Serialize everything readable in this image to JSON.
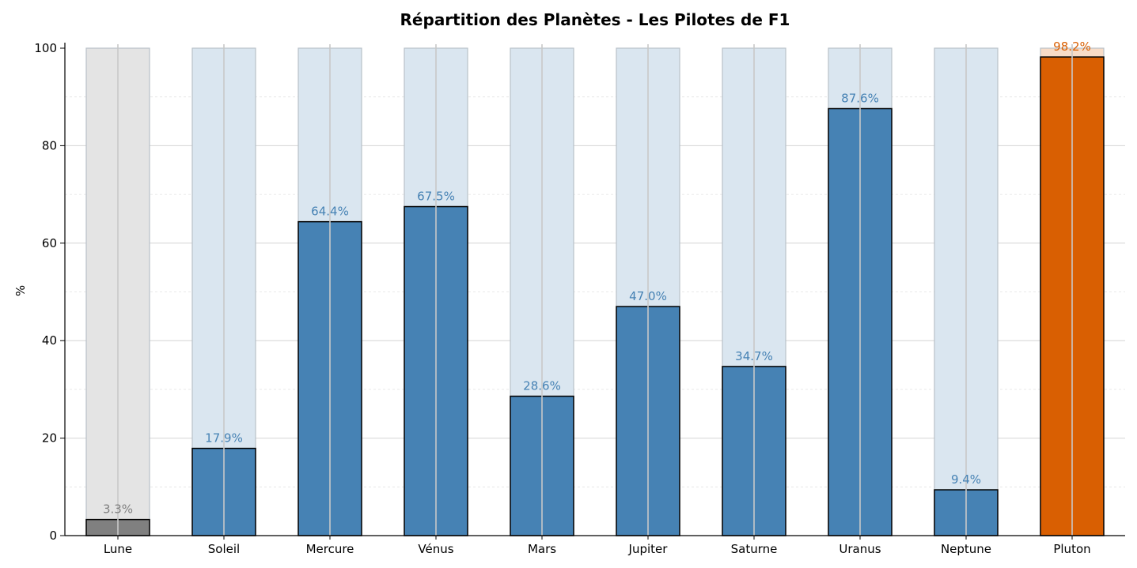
{
  "chart_data": {
    "type": "bar",
    "title": "Répartition des Planètes - Les Pilotes de F1",
    "xlabel": "",
    "ylabel": "%",
    "ylim": [
      0,
      100
    ],
    "yticks": [
      0,
      20,
      40,
      60,
      80,
      100
    ],
    "grid": true,
    "categories": [
      "Lune",
      "Soleil",
      "Mercure",
      "Vénus",
      "Mars",
      "Jupiter",
      "Saturne",
      "Uranus",
      "Neptune",
      "Pluton"
    ],
    "values": [
      3.3,
      17.9,
      64.4,
      67.5,
      28.6,
      47.0,
      34.7,
      87.6,
      9.4,
      98.2
    ],
    "value_labels": [
      "3.3%",
      "17.9%",
      "64.4%",
      "67.5%",
      "28.6%",
      "47.0%",
      "34.7%",
      "87.6%",
      "9.4%",
      "98.2%"
    ],
    "background_total": 100,
    "colors": {
      "default": "#4682b4",
      "default_background": "#dae6f0",
      "lowest": "#808080",
      "lowest_background": "#e4e4e4",
      "highest": "#d95f02",
      "highest_background": "#f8dcc7"
    }
  }
}
